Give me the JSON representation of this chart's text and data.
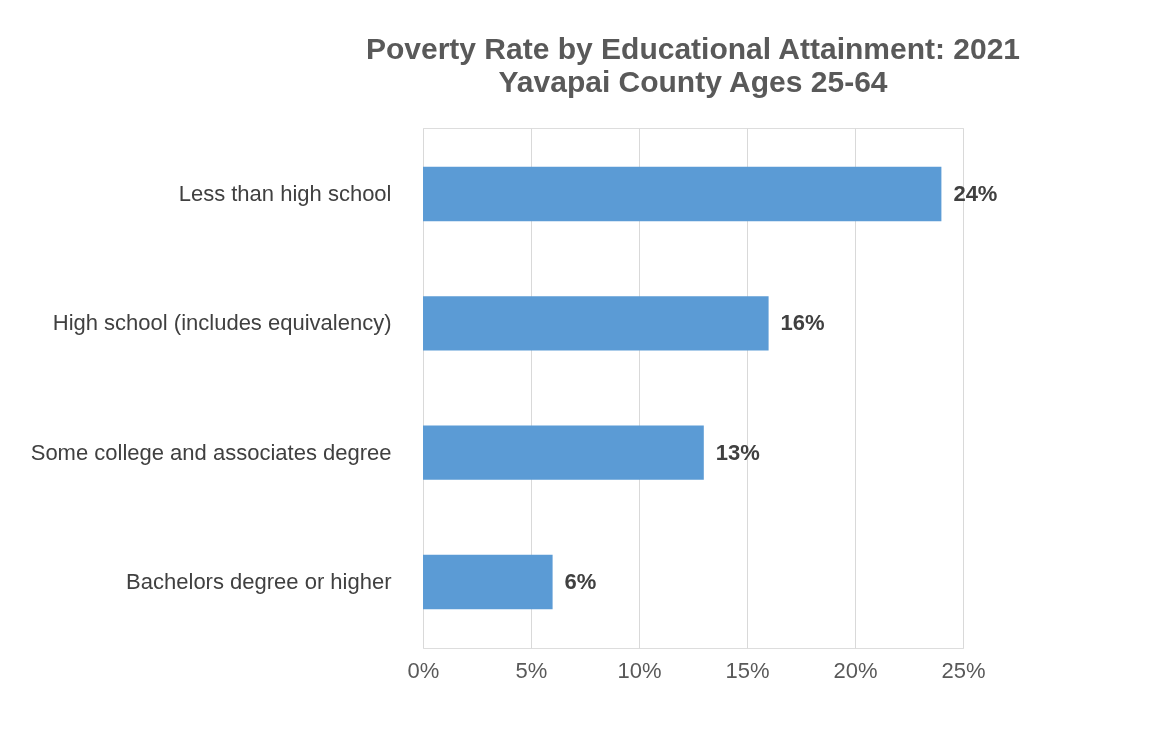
{
  "chart_data": {
    "type": "bar",
    "orientation": "horizontal",
    "title": "Poverty Rate by Educational Attainment: 2021",
    "subtitle": "Yavapai County Ages 25-64",
    "categories": [
      "Less than high school",
      "High school (includes equivalency)",
      "Some college and associates degree",
      "Bachelors degree or higher"
    ],
    "values": [
      24,
      16,
      13,
      6
    ],
    "color": "#5b9bd5",
    "data_labels": true,
    "value_labels": [
      "24%",
      "16%",
      "13%",
      "6%"
    ],
    "xlim": [
      0,
      25
    ],
    "xticks": [
      {
        "value": 0,
        "label": "0%"
      },
      {
        "value": 5,
        "label": "5%"
      },
      {
        "value": 10,
        "label": "10%"
      },
      {
        "value": 15,
        "label": "15%"
      },
      {
        "value": 20,
        "label": "20%"
      },
      {
        "value": 25,
        "label": "25%"
      }
    ],
    "grid": "x"
  }
}
